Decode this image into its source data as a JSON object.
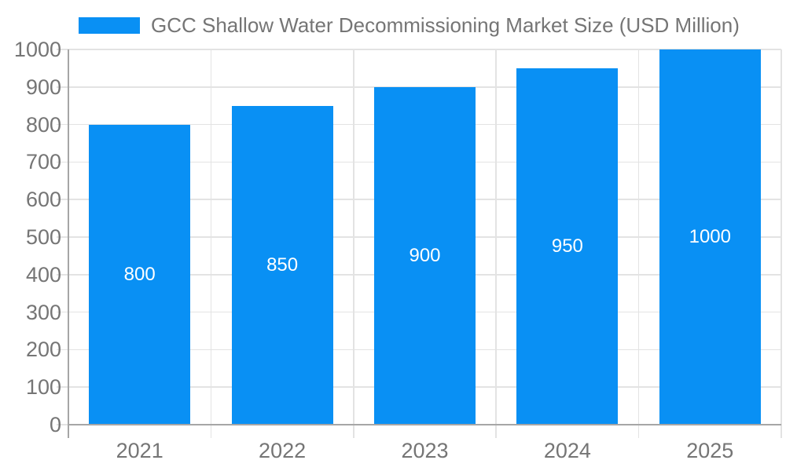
{
  "chart_data": {
    "type": "bar",
    "title": "GCC Shallow Water Decommissioning Market Size (USD Million)",
    "legend": {
      "position": "top",
      "label": "GCC Shallow Water Decommissioning Market Size (USD Million)"
    },
    "categories": [
      "2021",
      "2022",
      "2023",
      "2024",
      "2025"
    ],
    "series": [
      {
        "name": "GCC Shallow Water Decommissioning Market Size (USD Million)",
        "values": [
          800,
          850,
          900,
          950,
          1000
        ]
      }
    ],
    "value_labels": [
      "800",
      "850",
      "900",
      "950",
      "1000"
    ],
    "xlabel": "",
    "ylabel": "",
    "ylim": [
      0,
      1000
    ],
    "yticks": [
      0,
      100,
      200,
      300,
      400,
      500,
      600,
      700,
      800,
      900,
      1000
    ],
    "grid": true,
    "colors": {
      "bar": "#0990f4",
      "grid": "#e3e3e3",
      "axis": "#a6a6a6",
      "text": "#757575",
      "value_label": "#ffffff",
      "background": "#ffffff"
    }
  }
}
